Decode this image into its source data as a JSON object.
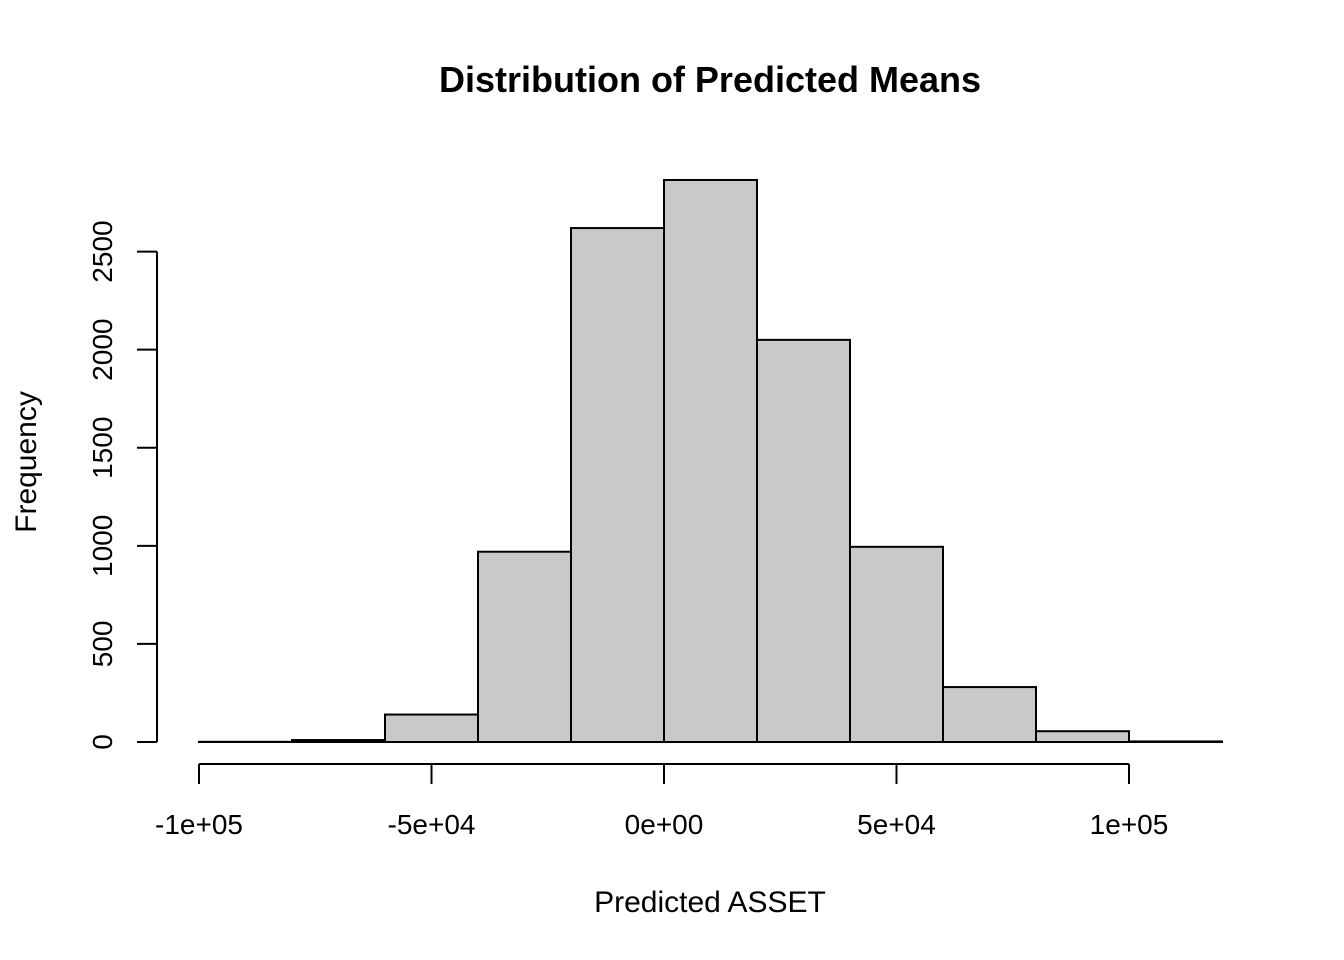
{
  "chart_data": {
    "type": "bar",
    "subtype": "histogram",
    "title": "Distribution of Predicted Means",
    "xlabel": "Predicted ASSET",
    "ylabel": "Frequency",
    "bin_edges": [
      -100000,
      -80000,
      -60000,
      -40000,
      -20000,
      0,
      20000,
      40000,
      60000,
      80000,
      100000,
      120000
    ],
    "values": [
      1,
      10,
      140,
      970,
      2620,
      2865,
      2050,
      995,
      280,
      55,
      3
    ],
    "xlim": [
      -100000,
      120000
    ],
    "ylim": [
      0,
      2865
    ],
    "x_ticks": [
      -100000,
      -50000,
      0,
      50000,
      100000
    ],
    "x_tick_labels": [
      "-1e+05",
      "-5e+04",
      "0e+00",
      "5e+04",
      "1e+05"
    ],
    "y_ticks": [
      0,
      500,
      1000,
      1500,
      2000,
      2500
    ],
    "y_tick_labels": [
      "0",
      "500",
      "1000",
      "1500",
      "2000",
      "2500"
    ],
    "bar_color": "#c9c9c9",
    "edge_color": "#000000",
    "grid": false,
    "legend": "none"
  }
}
